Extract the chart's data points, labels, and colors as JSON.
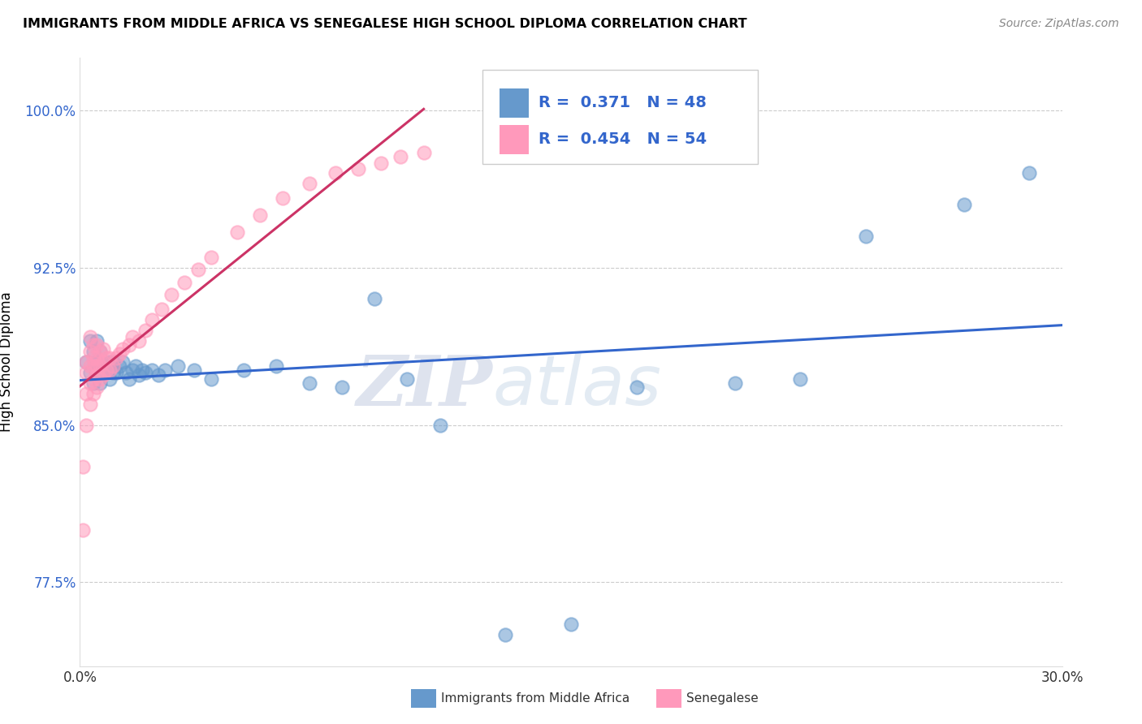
{
  "title": "IMMIGRANTS FROM MIDDLE AFRICA VS SENEGALESE HIGH SCHOOL DIPLOMA CORRELATION CHART",
  "source": "Source: ZipAtlas.com",
  "ylabel": "High School Diploma",
  "xlim": [
    0.0,
    0.3
  ],
  "ylim": [
    0.735,
    1.025
  ],
  "yticks": [
    0.775,
    0.85,
    0.925,
    1.0
  ],
  "ytick_labels": [
    "77.5%",
    "85.0%",
    "92.5%",
    "100.0%"
  ],
  "xticks": [
    0.0,
    0.05,
    0.1,
    0.15,
    0.2,
    0.25,
    0.3
  ],
  "xtick_labels": [
    "0.0%",
    "",
    "",
    "",
    "",
    "",
    "30.0%"
  ],
  "blue_R": 0.371,
  "blue_N": 48,
  "pink_R": 0.454,
  "pink_N": 54,
  "blue_label": "Immigrants from Middle Africa",
  "pink_label": "Senegalese",
  "blue_color": "#6699cc",
  "pink_color": "#ff99bb",
  "blue_line_color": "#3366cc",
  "pink_line_color": "#cc3366",
  "watermark_zip": "ZIP",
  "watermark_atlas": "atlas",
  "blue_x": [
    0.002,
    0.003,
    0.003,
    0.004,
    0.004,
    0.005,
    0.005,
    0.005,
    0.006,
    0.006,
    0.007,
    0.007,
    0.008,
    0.009,
    0.009,
    0.01,
    0.01,
    0.011,
    0.012,
    0.013,
    0.014,
    0.015,
    0.016,
    0.017,
    0.018,
    0.019,
    0.02,
    0.022,
    0.024,
    0.026,
    0.03,
    0.035,
    0.04,
    0.05,
    0.06,
    0.07,
    0.08,
    0.09,
    0.1,
    0.11,
    0.13,
    0.15,
    0.17,
    0.2,
    0.22,
    0.24,
    0.27,
    0.29
  ],
  "blue_y": [
    0.88,
    0.875,
    0.89,
    0.87,
    0.885,
    0.875,
    0.88,
    0.89,
    0.87,
    0.885,
    0.875,
    0.88,
    0.878,
    0.872,
    0.88,
    0.875,
    0.88,
    0.875,
    0.878,
    0.88,
    0.875,
    0.872,
    0.876,
    0.878,
    0.874,
    0.876,
    0.875,
    0.876,
    0.874,
    0.876,
    0.878,
    0.876,
    0.872,
    0.876,
    0.878,
    0.87,
    0.868,
    0.91,
    0.872,
    0.85,
    0.75,
    0.755,
    0.868,
    0.87,
    0.872,
    0.94,
    0.955,
    0.97
  ],
  "pink_x": [
    0.001,
    0.001,
    0.002,
    0.002,
    0.002,
    0.002,
    0.003,
    0.003,
    0.003,
    0.003,
    0.003,
    0.004,
    0.004,
    0.004,
    0.004,
    0.004,
    0.005,
    0.005,
    0.005,
    0.005,
    0.005,
    0.006,
    0.006,
    0.006,
    0.007,
    0.007,
    0.007,
    0.008,
    0.008,
    0.009,
    0.009,
    0.01,
    0.011,
    0.012,
    0.013,
    0.015,
    0.016,
    0.018,
    0.02,
    0.022,
    0.025,
    0.028,
    0.032,
    0.036,
    0.04,
    0.048,
    0.055,
    0.062,
    0.07,
    0.078,
    0.085,
    0.092,
    0.098,
    0.105
  ],
  "pink_y": [
    0.8,
    0.83,
    0.85,
    0.865,
    0.875,
    0.88,
    0.86,
    0.87,
    0.878,
    0.885,
    0.892,
    0.865,
    0.872,
    0.878,
    0.882,
    0.888,
    0.868,
    0.874,
    0.878,
    0.882,
    0.888,
    0.872,
    0.878,
    0.885,
    0.874,
    0.88,
    0.886,
    0.876,
    0.882,
    0.876,
    0.882,
    0.878,
    0.882,
    0.884,
    0.886,
    0.888,
    0.892,
    0.89,
    0.895,
    0.9,
    0.905,
    0.912,
    0.918,
    0.924,
    0.93,
    0.942,
    0.95,
    0.958,
    0.965,
    0.97,
    0.972,
    0.975,
    0.978,
    0.98
  ]
}
